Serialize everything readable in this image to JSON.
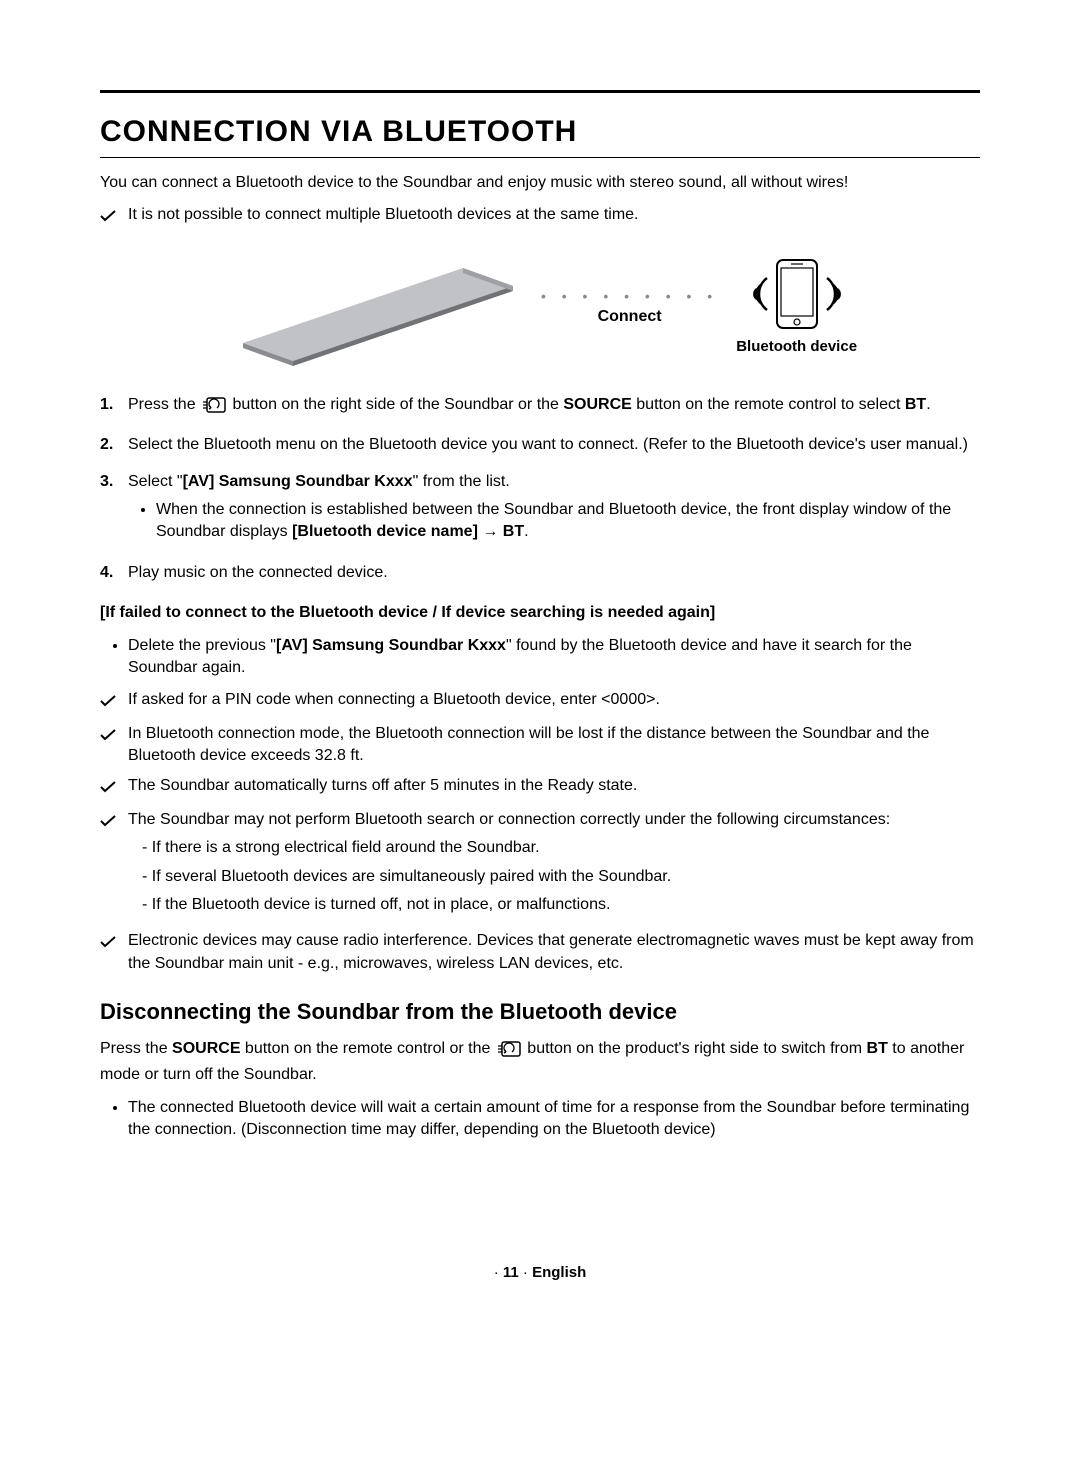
{
  "title": "Connection via Bluetooth",
  "intro": "You can connect a Bluetooth device to the Soundbar and enjoy music with stereo sound, all without wires!",
  "first_check": "It is not possible to connect multiple Bluetooth devices at the same time.",
  "diagram": {
    "connect_label": "Connect",
    "device_label": "Bluetooth device",
    "soundbar_color_top": "#c0c2c6",
    "soundbar_color_side": "#8a8c90",
    "phone_stroke": "#000000",
    "signal_stroke": "#000000",
    "dot_color": "#9a9a9a"
  },
  "steps": [
    {
      "pre": "Press the ",
      "icon": true,
      "mid": " button on the right side of the Soundbar or the ",
      "bold1": "SOURCE",
      "post1": " button on the remote control to select ",
      "bold2": "BT",
      "post2": "."
    },
    {
      "text": "Select the Bluetooth menu on the Bluetooth device you want to connect. (Refer to the Bluetooth device's user manual.)"
    },
    {
      "pre": "Select \"",
      "bold1": "[AV] Samsung Soundbar Kxxx",
      "post1": "\" from the list.",
      "sub": {
        "pre": "When the connection is established between the Soundbar and Bluetooth device, the front display window of the Soundbar displays ",
        "bold": "[Bluetooth device name] → BT",
        "post": "."
      }
    },
    {
      "text": "Play music on the connected device."
    }
  ],
  "fail_header": "[If failed to connect to the Bluetooth device / If device searching is needed again]",
  "fail_bullet": {
    "pre": "Delete the previous \"",
    "bold": "[AV] Samsung Soundbar Kxxx",
    "post": "\" found by the Bluetooth device and have it search for the Soundbar again."
  },
  "checks": [
    {
      "text": "If asked for a PIN code when connecting a Bluetooth device, enter <0000>."
    },
    {
      "text": "In Bluetooth connection mode, the Bluetooth connection will be lost if the distance between the Soundbar and the Bluetooth device exceeds 32.8 ft."
    },
    {
      "text": "The Soundbar automatically turns off after 5 minutes in the Ready state."
    },
    {
      "text": "The Soundbar may not perform Bluetooth search or connection correctly under the following circumstances:",
      "subs": [
        "If there is a strong electrical field around the Soundbar.",
        "If several Bluetooth devices are simultaneously paired with the Soundbar.",
        "If the Bluetooth device is turned off, not in place, or malfunctions."
      ]
    },
    {
      "text": "Electronic devices may cause radio interference. Devices that generate electromagnetic waves must be kept away from the Soundbar main unit - e.g., microwaves, wireless LAN devices, etc."
    }
  ],
  "subhead": "Disconnecting the Soundbar from the Bluetooth device",
  "sub_intro": {
    "pre": "Press the ",
    "bold1": "SOURCE",
    "mid": " button on the remote control or the ",
    "icon": true,
    "post1": " button on the product's right side to switch from ",
    "bold2": "BT",
    "post2": " to another mode or turn off the Soundbar."
  },
  "sub_bullet": "The connected Bluetooth device will wait a certain amount of time for a response from the Soundbar before terminating the connection. (Disconnection time may differ, depending on the Bluetooth device)",
  "footer": {
    "dot": "·",
    "page": "11",
    "lang": "English"
  }
}
